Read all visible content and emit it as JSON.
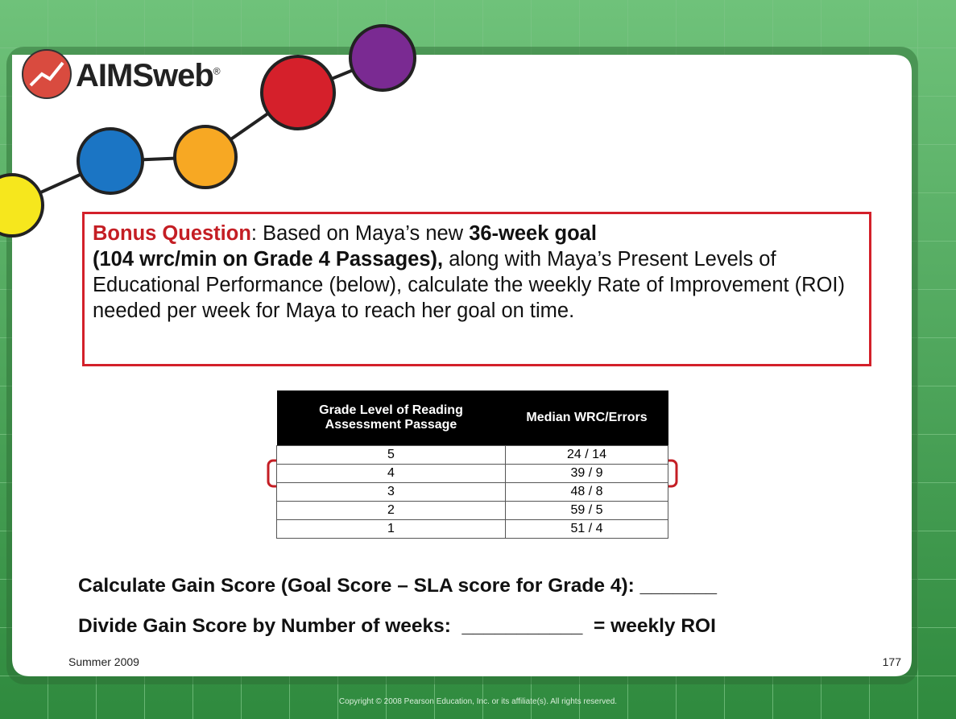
{
  "logo": {
    "name": "AIMSweb",
    "mark": "®"
  },
  "question": {
    "segments": [
      "Bonus Question",
      ": Based on Maya’s new ",
      "36-week goal",
      "(104 wrc/min on Grade 4 Passages),",
      " along with Maya’s Present Levels of Educational Performance (below),  calculate the weekly Rate of Improvement (ROI) needed per week for Maya to reach her goal on time."
    ]
  },
  "table": {
    "headers": [
      "Grade Level of Reading Assessment Passage",
      "Median WRC/Errors"
    ],
    "rows": [
      [
        5,
        "24 / 14"
      ],
      [
        4,
        "39 / 9"
      ],
      [
        3,
        "48 / 8"
      ],
      [
        2,
        "59 / 5"
      ],
      [
        1,
        "51 / 4"
      ]
    ]
  },
  "calculations": [
    "Calculate Gain Score (Goal Score – SLA score for Grade 4): _______",
    "Divide Gain Score by Number of weeks:  ___________  = weekly ROI"
  ],
  "footer": {
    "date": "Summer 2009",
    "page": "177",
    "copyright": "Copyright © 2008 Pearson Education, Inc. or its affiliate(s). All rights reserved."
  }
}
